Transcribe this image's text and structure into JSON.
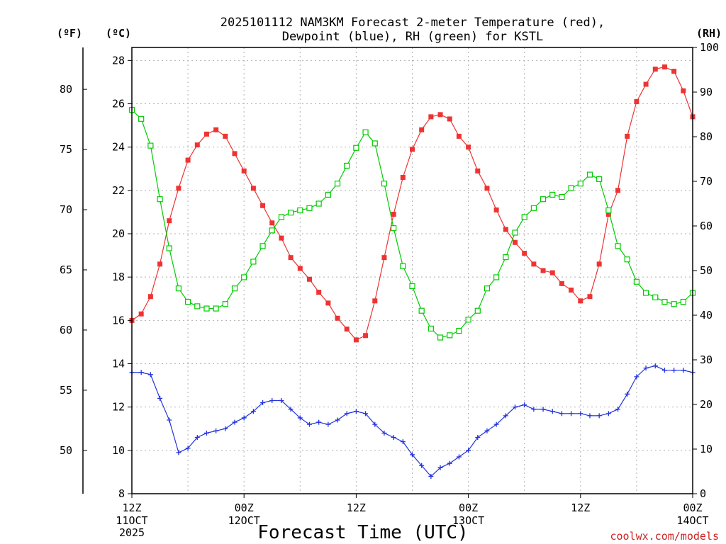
{
  "chart_data": {
    "type": "line",
    "title_line1": "2025101112 NAM3KM Forecast 2-meter Temperature (red),",
    "title_line2": "Dewpoint (blue), RH (green) for KSTL",
    "xlabel": "Forecast Time (UTC)",
    "credit": "coolwx.com/models",
    "units": {
      "fahrenheit": "(ºF)",
      "celsius": "(ºC)",
      "rh": "(RH)"
    },
    "x_ticks": [
      {
        "h": 0,
        "line1": "12Z",
        "line2": "11OCT",
        "line3": "2025"
      },
      {
        "h": 12,
        "line1": "00Z",
        "line2": "12OCT",
        "line3": ""
      },
      {
        "h": 24,
        "line1": "12Z",
        "line2": "",
        "line3": ""
      },
      {
        "h": 36,
        "line1": "00Z",
        "line2": "13OCT",
        "line3": ""
      },
      {
        "h": 48,
        "line1": "12Z",
        "line2": "",
        "line3": ""
      },
      {
        "h": 60,
        "line1": "00Z",
        "line2": "14OCT",
        "line3": ""
      }
    ],
    "xlim": [
      0,
      60
    ],
    "ylim_c": [
      8,
      28.6
    ],
    "ylim_rh": [
      0,
      100
    ],
    "c_ticks": [
      "8",
      "10",
      "12",
      "14",
      "16",
      "18",
      "20",
      "22",
      "24",
      "26",
      "28"
    ],
    "f_ticks": [
      "50",
      "55",
      "60",
      "65",
      "70",
      "75",
      "80"
    ],
    "rh_ticks": [
      "0",
      "10",
      "20",
      "30",
      "40",
      "50",
      "60",
      "70",
      "80",
      "90",
      "100"
    ],
    "colors": {
      "temperature": "#ee3333",
      "dewpoint": "#2233dd",
      "rh": "#00cc00"
    },
    "series": [
      {
        "name": "Temperature (°C)",
        "values": [
          16.0,
          16.3,
          17.1,
          18.6,
          20.6,
          22.1,
          23.4,
          24.1,
          24.6,
          24.8,
          24.5,
          23.7,
          22.9,
          22.1,
          21.3,
          20.5,
          19.8,
          18.9,
          18.4,
          17.9,
          17.3,
          16.8,
          16.1,
          15.6,
          15.1,
          15.3,
          16.9,
          18.9,
          20.9,
          22.6,
          23.9,
          24.8,
          25.4,
          25.5,
          25.3,
          24.5,
          24.0,
          22.9,
          22.1,
          21.1,
          20.2,
          19.6,
          19.1,
          18.6,
          18.3,
          18.2,
          17.7,
          17.4,
          16.9,
          17.1,
          18.6,
          20.9,
          22.0,
          24.5,
          26.1,
          26.9,
          27.6,
          27.7,
          27.5,
          26.6,
          25.4
        ]
      },
      {
        "name": "Dewpoint (°C)",
        "values": [
          13.6,
          13.6,
          13.5,
          12.4,
          11.4,
          9.9,
          10.1,
          10.6,
          10.8,
          10.9,
          11.0,
          11.3,
          11.5,
          11.8,
          12.2,
          12.3,
          12.3,
          11.9,
          11.5,
          11.2,
          11.3,
          11.2,
          11.4,
          11.7,
          11.8,
          11.7,
          11.2,
          10.8,
          10.6,
          10.4,
          9.8,
          9.3,
          8.8,
          9.2,
          9.4,
          9.7,
          10.0,
          10.6,
          10.9,
          11.2,
          11.6,
          12.0,
          12.1,
          11.9,
          11.9,
          11.8,
          11.7,
          11.7,
          11.7,
          11.6,
          11.6,
          11.7,
          11.9,
          12.6,
          13.4,
          13.8,
          13.9,
          13.7,
          13.7,
          13.7,
          13.6
        ]
      },
      {
        "name": "RH (%)",
        "values": [
          86,
          84,
          78,
          66,
          55,
          46,
          43,
          42,
          41.5,
          41.5,
          42.5,
          46,
          48.5,
          52,
          55.5,
          59,
          62,
          63,
          63.5,
          64,
          65,
          67,
          69.5,
          73.5,
          77.5,
          81,
          78.5,
          69.5,
          59.5,
          51,
          46.5,
          41,
          37,
          35,
          35.5,
          36.5,
          39,
          41,
          46,
          48.5,
          53,
          58.5,
          62,
          64,
          66,
          67,
          66.5,
          68.5,
          69.5,
          71.5,
          70.5,
          63.5,
          55.5,
          52.5,
          47.5,
          45,
          44,
          43,
          42.5,
          43,
          45
        ]
      }
    ]
  }
}
